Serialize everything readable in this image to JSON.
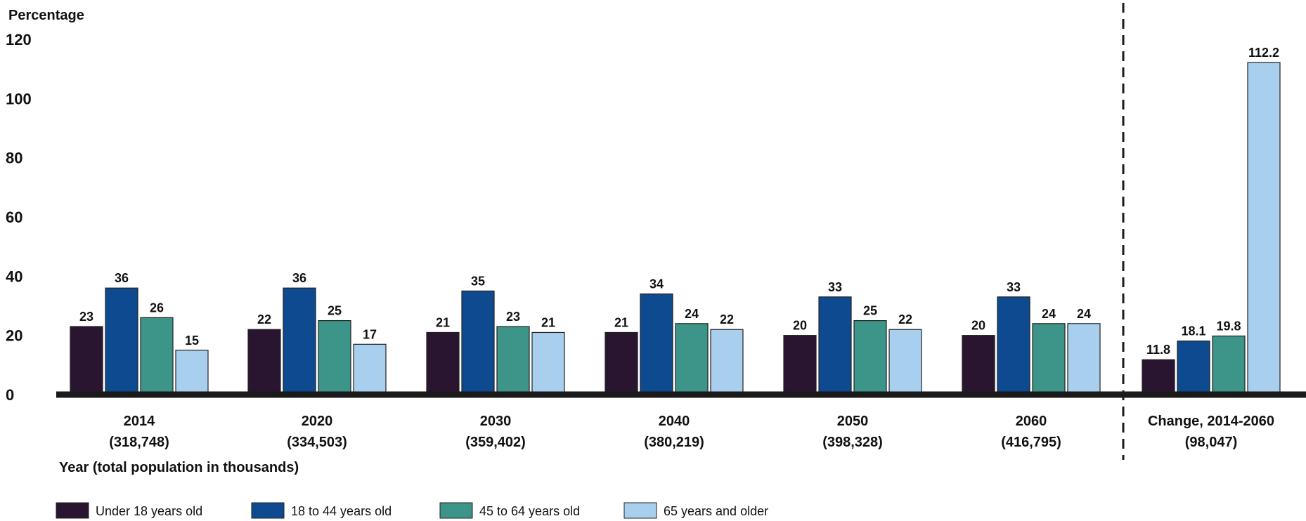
{
  "chart_data": {
    "type": "bar",
    "ylabel": "Percentage",
    "xlabel": "Year (total population in thousands)",
    "ylim": [
      0,
      120
    ],
    "yticks": [
      "0",
      "20",
      "40",
      "60",
      "80",
      "100",
      "120"
    ],
    "grid": false,
    "legend_position": "bottom-left",
    "categories": [
      {
        "label": "2014",
        "sublabel": "(318,748)"
      },
      {
        "label": "2020",
        "sublabel": "(334,503)"
      },
      {
        "label": "2030",
        "sublabel": "(359,402)"
      },
      {
        "label": "2040",
        "sublabel": "(380,219)"
      },
      {
        "label": "2050",
        "sublabel": "(398,328)"
      },
      {
        "label": "2060",
        "sublabel": "(416,795)"
      },
      {
        "label": "Change, 2014-2060",
        "sublabel": "(98,047)"
      }
    ],
    "series": [
      {
        "name": "Under 18 years old",
        "color": "#2a1530",
        "values": [
          23,
          22,
          21,
          21,
          20,
          20,
          11.8
        ],
        "labels": [
          "23",
          "22",
          "21",
          "21",
          "20",
          "20",
          "11.8"
        ]
      },
      {
        "name": "18 to 44 years old",
        "color": "#0d4a8f",
        "values": [
          36,
          36,
          35,
          34,
          33,
          33,
          18.1
        ],
        "labels": [
          "36",
          "36",
          "35",
          "34",
          "33",
          "33",
          "18.1"
        ]
      },
      {
        "name": "45 to 64 years old",
        "color": "#3d9488",
        "values": [
          26,
          25,
          23,
          24,
          25,
          24,
          19.8
        ],
        "labels": [
          "26",
          "25",
          "23",
          "24",
          "25",
          "24",
          "19.8"
        ]
      },
      {
        "name": "65 years and older",
        "color": "#a9cfee",
        "values": [
          15,
          17,
          21,
          22,
          22,
          24,
          112.2
        ],
        "labels": [
          "15",
          "17",
          "21",
          "22",
          "22",
          "24",
          "112.2"
        ]
      }
    ],
    "separator_before_category": 6
  }
}
